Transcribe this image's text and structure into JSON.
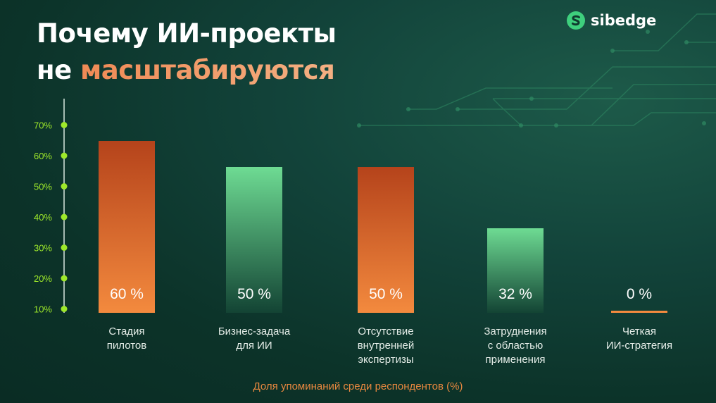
{
  "title": {
    "line1": "Почему ИИ-проекты",
    "line2_prefix": "не ",
    "line2_accent": "масштабируются"
  },
  "logo": {
    "text": "sibedge",
    "icon": "sibedge-s-icon"
  },
  "colors": {
    "orange_top": "#b5431b",
    "orange_bottom": "#f38a3e",
    "green_top": "#6edb93",
    "green_bottom": "#134434",
    "axis_tick": "#9ee82a",
    "xlabel": "#e8883f"
  },
  "chart_data": {
    "type": "bar",
    "categories": [
      [
        "Стадия",
        "пилотов"
      ],
      [
        "Бизнес-задача",
        "для ИИ"
      ],
      [
        "Отсутствие",
        "внутренней",
        "экспертизы"
      ],
      [
        "Затруднения",
        "с областью",
        "применения"
      ],
      [
        "Четкая",
        "ИИ-стратегия"
      ]
    ],
    "values": [
      60,
      50,
      50,
      32,
      0
    ],
    "value_labels": [
      "60 %",
      "50 %",
      "50 %",
      "32 %",
      "0 %"
    ],
    "bar_colors": [
      "orange",
      "green",
      "orange",
      "green",
      "orange"
    ],
    "y_ticks": [
      10,
      20,
      30,
      40,
      50,
      60,
      70
    ],
    "y_tick_labels": [
      "10%",
      "20%",
      "30%",
      "40%",
      "50%",
      "60%",
      "70%"
    ],
    "ylim": [
      0,
      70
    ],
    "xlabel": "Доля упоминаний среди респондентов (%)",
    "grid": false,
    "legend": "none"
  }
}
